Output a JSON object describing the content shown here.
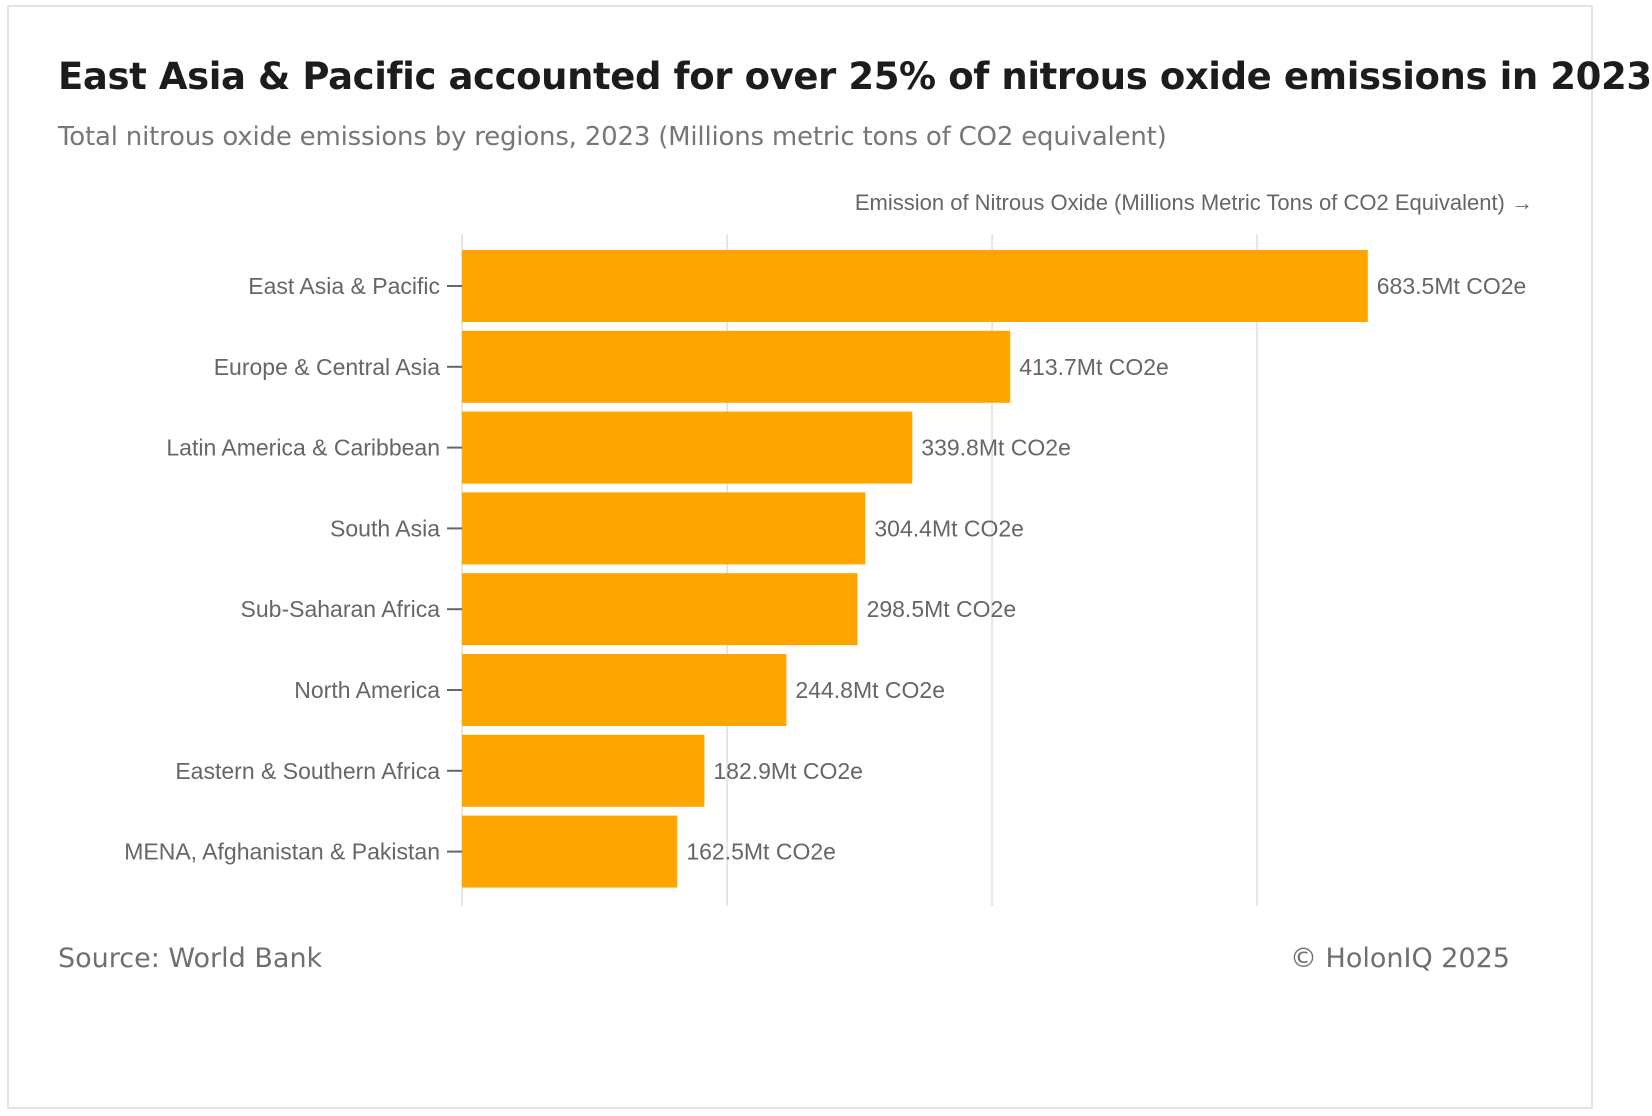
{
  "header": {
    "title": "East Asia & Pacific accounted for over 25% of nitrous oxide emissions in 2023",
    "subtitle": "Total nitrous oxide emissions by regions, 2023 (Millions metric tons of CO2 equivalent)"
  },
  "footer": {
    "source": "Source: World Bank",
    "copyright": "© HolonIQ 2025"
  },
  "colors": {
    "bar": "#FFA500",
    "grid": "#e6e6e6",
    "text": "#666666"
  },
  "chart_data": {
    "type": "bar",
    "orientation": "horizontal",
    "categories": [
      "East Asia & Pacific",
      "Europe & Central Asia",
      "Latin America & Caribbean",
      "South Asia",
      "Sub-Saharan Africa",
      "North America",
      "Eastern & Southern Africa",
      "MENA, Afghanistan & Pakistan"
    ],
    "values": [
      683.5,
      413.7,
      339.8,
      304.4,
      298.5,
      244.8,
      182.9,
      162.5
    ],
    "data_labels": [
      "683.5Mt CO2e",
      "413.7Mt CO2e",
      "339.8Mt CO2e",
      "304.4Mt CO2e",
      "298.5Mt CO2e",
      "244.8Mt CO2e",
      "182.9Mt CO2e",
      "162.5Mt CO2e"
    ],
    "xlabel": "Emission of Nitrous Oxide (Millions Metric Tons of CO2 Equivalent) →",
    "ylabel": "",
    "xlim": [
      0,
      800
    ],
    "gridlines": [
      0,
      200,
      400,
      600
    ],
    "grid": true,
    "tick_labels_shown": false
  }
}
